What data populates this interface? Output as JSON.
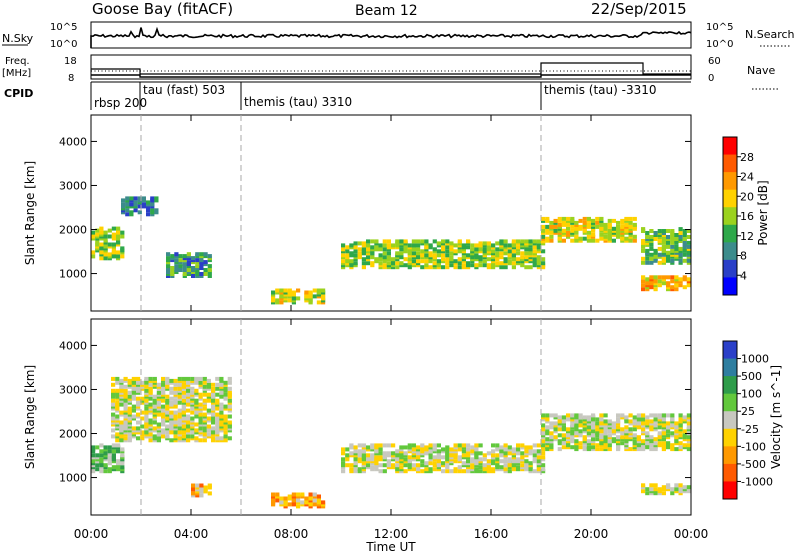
{
  "header": {
    "station": "Goose Bay (fitACF)",
    "beam": "Beam 12",
    "date": "22/Sep/2015"
  },
  "nsky_panel": {
    "left_label": "N.Sky",
    "left_ticks": [
      "10^5",
      "10^0"
    ],
    "right_ticks": [
      "10^5",
      "10^0"
    ],
    "right_label": "N.Search"
  },
  "freq_panel": {
    "label_line1": "Freq.",
    "label_line2": "[MHz]",
    "left_ticks": [
      "18",
      "8"
    ],
    "right_ticks": [
      "60",
      "0"
    ],
    "right_label": "Nave"
  },
  "cpid": {
    "label": "CPID",
    "segments": [
      {
        "text": "rbsp 200",
        "start_h": 0.0
      },
      {
        "text": "tau (fast) 503",
        "start_h": 2.0
      },
      {
        "text": "themis (tau) 3310",
        "start_h": 6.0
      },
      {
        "text": "themis (tau) -3310",
        "start_h": 18.0
      }
    ]
  },
  "chart_data": [
    {
      "type": "heatmap",
      "title": "Power",
      "ylabel": "Slant Range [km]",
      "ylim": [
        150,
        4600
      ],
      "yticks": [
        "1000",
        "2000",
        "3000",
        "4000"
      ],
      "xlim_hours": [
        0,
        24
      ],
      "colorbar": {
        "label": "Power [dB]",
        "ticks": [
          "28",
          "24",
          "20",
          "16",
          "12",
          "8",
          "4"
        ],
        "colors": [
          "#ff0000",
          "#ff5a00",
          "#ff9900",
          "#ffd200",
          "#9bd21e",
          "#2ea84a",
          "#3c8c8c",
          "#2a3fc8",
          "#0000ff"
        ]
      },
      "regions": [
        {
          "t": [
            0.0,
            1.2
          ],
          "r": [
            1300,
            2000
          ],
          "value_db": 16
        },
        {
          "t": [
            1.2,
            2.6
          ],
          "r": [
            2300,
            2700
          ],
          "value_db": 8
        },
        {
          "t": [
            3.0,
            4.8
          ],
          "r": [
            900,
            1400
          ],
          "value_db": 10
        },
        {
          "t": [
            7.2,
            9.2
          ],
          "r": [
            300,
            600
          ],
          "value_db": 18
        },
        {
          "t": [
            10.0,
            18.0
          ],
          "r": [
            1100,
            1700
          ],
          "value_db": 16
        },
        {
          "t": [
            18.0,
            21.8
          ],
          "r": [
            1700,
            2200
          ],
          "value_db": 18
        },
        {
          "t": [
            22.0,
            24.0
          ],
          "r": [
            600,
            900
          ],
          "value_db": 22
        },
        {
          "t": [
            22.0,
            24.0
          ],
          "r": [
            1200,
            2000
          ],
          "value_db": 14
        }
      ]
    },
    {
      "type": "heatmap",
      "title": "Velocity",
      "ylabel": "Slant Range [km]",
      "ylim": [
        150,
        4600
      ],
      "yticks": [
        "1000",
        "2000",
        "3000",
        "4000"
      ],
      "xlim_hours": [
        0,
        24
      ],
      "colorbar": {
        "label": "Velocity [m s^-1]",
        "ticks": [
          "1000",
          "500",
          "100",
          "25",
          "-25",
          "-100",
          "-500",
          "-1000"
        ],
        "colors": [
          "#2a3fc8",
          "#2e7ea0",
          "#2e9c4a",
          "#62c83c",
          "#c8c8c0",
          "#ffd200",
          "#ff9900",
          "#ff5a00",
          "#ff0000"
        ]
      },
      "regions": [
        {
          "t": [
            0.0,
            1.2
          ],
          "r": [
            1100,
            1700
          ],
          "value_ms": 200
        },
        {
          "t": [
            0.8,
            5.5
          ],
          "r": [
            1800,
            3200
          ],
          "value_ms": 0
        },
        {
          "t": [
            4.0,
            4.8
          ],
          "r": [
            550,
            800
          ],
          "value_ms": -300
        },
        {
          "t": [
            7.2,
            9.2
          ],
          "r": [
            300,
            600
          ],
          "value_ms": -400
        },
        {
          "t": [
            10.0,
            18.0
          ],
          "r": [
            1100,
            1700
          ],
          "value_ms": 0
        },
        {
          "t": [
            18.0,
            24.0
          ],
          "r": [
            1600,
            2400
          ],
          "value_ms": 0
        },
        {
          "t": [
            22.0,
            24.0
          ],
          "r": [
            600,
            800
          ],
          "value_ms": 0
        }
      ]
    }
  ],
  "xaxis": {
    "ticks": [
      "00:00",
      "04:00",
      "08:00",
      "12:00",
      "16:00",
      "20:00",
      "00:00"
    ],
    "label": "Time UT"
  }
}
